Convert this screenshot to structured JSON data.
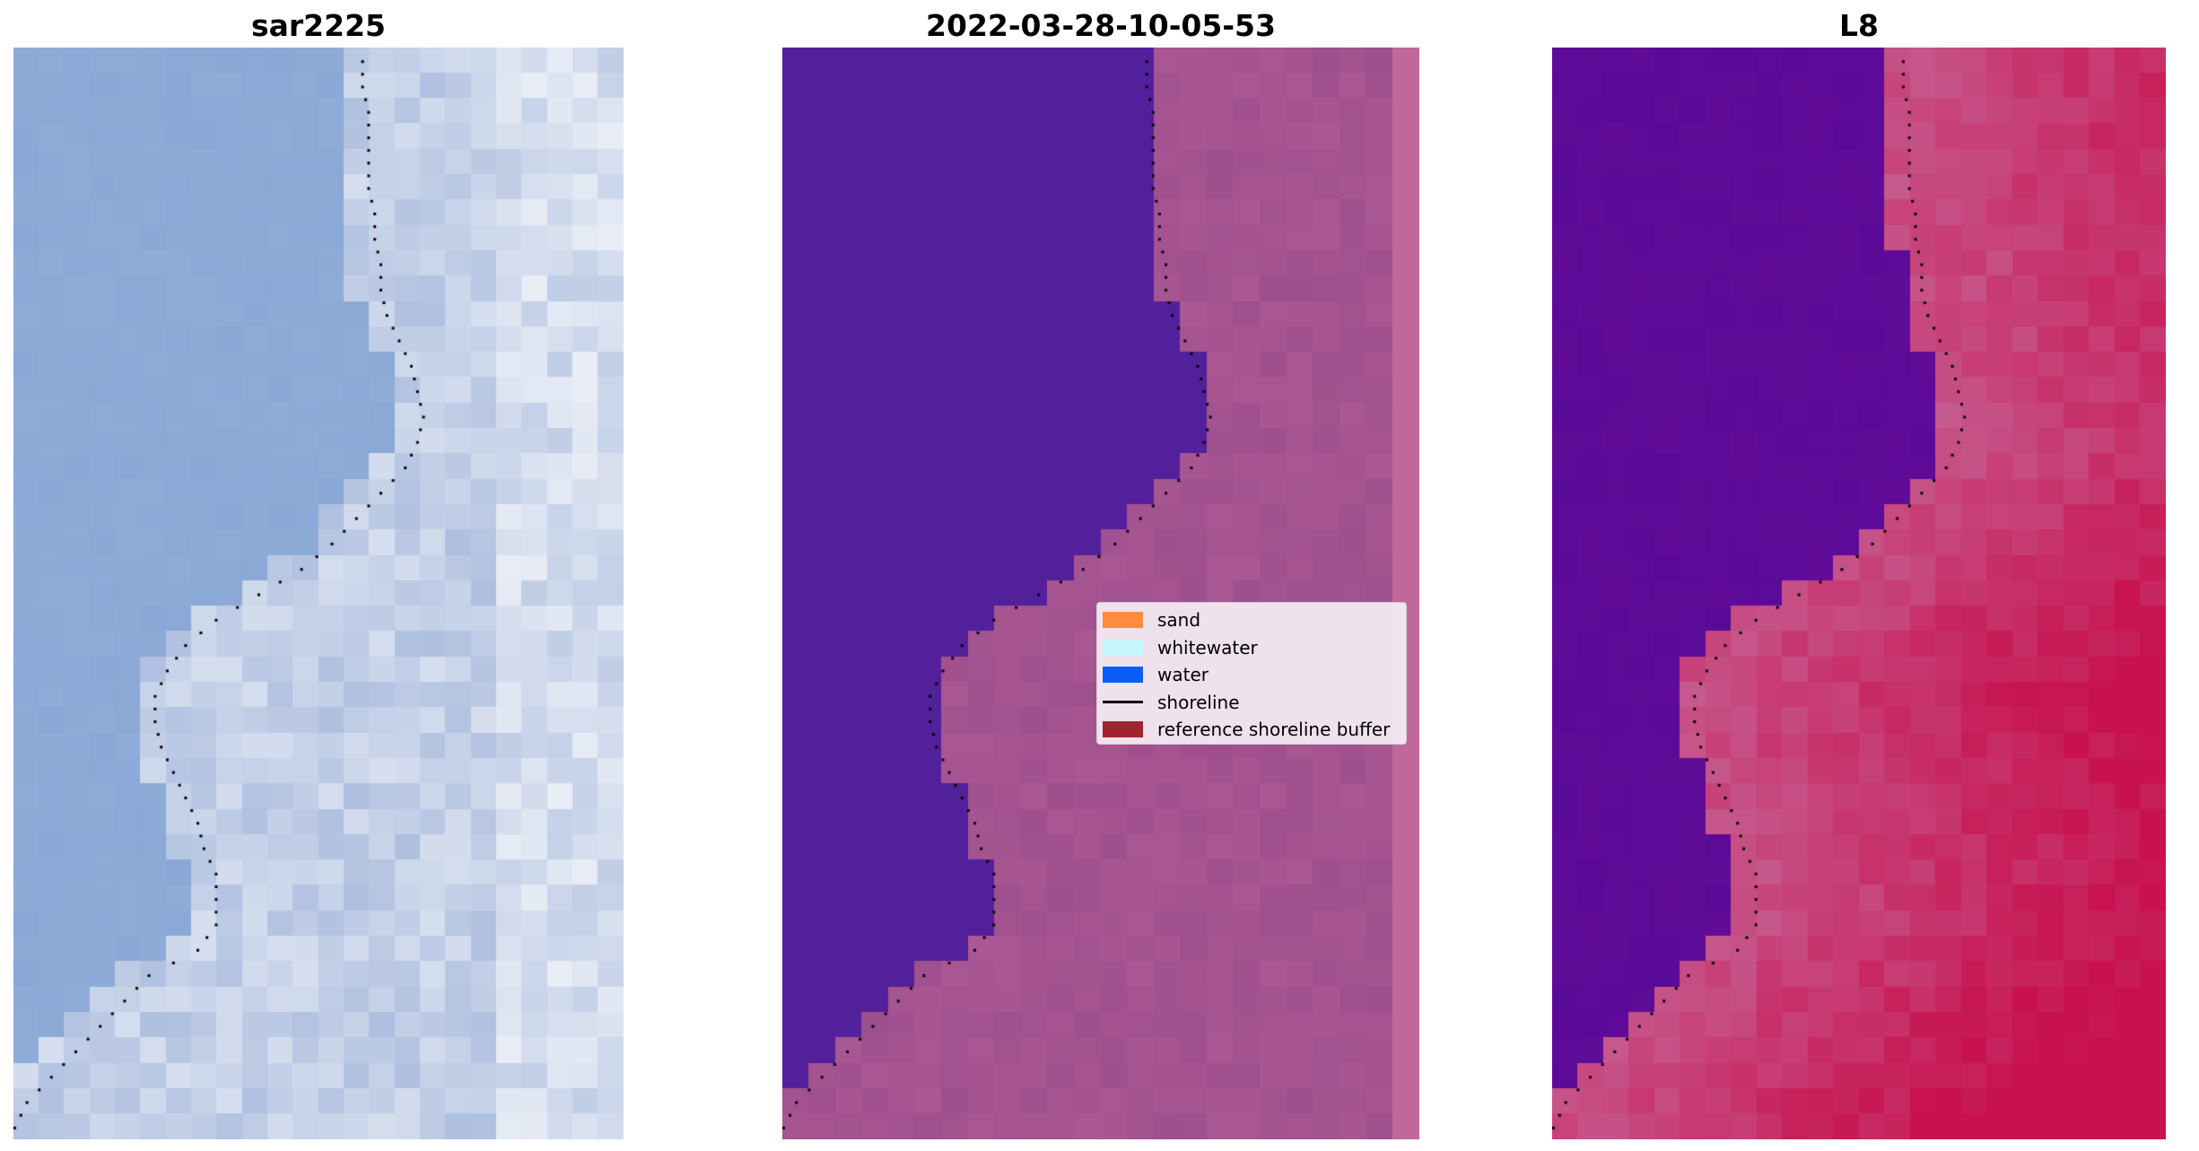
{
  "panels": [
    {
      "title": "sar2225",
      "style": "sar"
    },
    {
      "title": "2022-03-28-10-05-53",
      "style": "classified"
    },
    {
      "title": "L8",
      "style": "index"
    }
  ],
  "legend": {
    "items": [
      {
        "label": "sand",
        "type": "patch",
        "color": "#ff8c3f"
      },
      {
        "label": "whitewater",
        "type": "patch",
        "color": "#c8f7fb"
      },
      {
        "label": "water",
        "type": "patch",
        "color": "#0a5ef7"
      },
      {
        "label": "shoreline",
        "type": "line",
        "color": "#000000"
      },
      {
        "label": "reference shoreline buffer",
        "type": "patch",
        "color": "#a0242e"
      }
    ]
  },
  "colors": {
    "sar_water": "#8aa8d6",
    "sar_land": "#aebfdf",
    "sar_white": "#f6f8fb",
    "classified_water": "#52209a",
    "classified_land": "#9e4f8e",
    "classified_edge": "#c0679b",
    "index_water": "#5a0a98",
    "index_land": "#c65a8e",
    "index_hot": "#c8003e",
    "shoreline": "#000000"
  }
}
